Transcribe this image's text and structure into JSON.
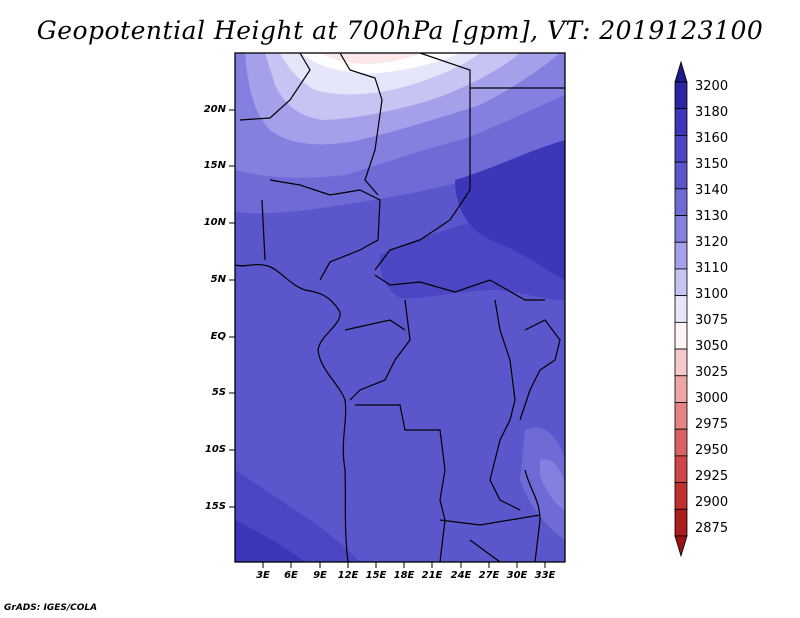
{
  "title": "Geopotential Height at 700hPa [gpm], VT: 2019123100",
  "credit": "GrADS: IGES/COLA",
  "map": {
    "lat_labels": [
      "20N",
      "15N",
      "10N",
      "5N",
      "EQ",
      "5S",
      "10S",
      "15S"
    ],
    "lon_labels": [
      "3E",
      "6E",
      "9E",
      "12E",
      "15E",
      "18E",
      "21E",
      "24E",
      "27E",
      "30E",
      "33E"
    ]
  },
  "colorbar": {
    "labels": [
      "3200",
      "3180",
      "3160",
      "3150",
      "3140",
      "3130",
      "3120",
      "3110",
      "3100",
      "3075",
      "3050",
      "3025",
      "3000",
      "2975",
      "2950",
      "2925",
      "2900",
      "2875"
    ],
    "colors": [
      "#1e1a8c",
      "#2a26a3",
      "#3b37b8",
      "#4a46c4",
      "#5a56cc",
      "#6e6ad6",
      "#8480e0",
      "#a4a1ea",
      "#c6c4f2",
      "#e6e6fa",
      "#fff4f4",
      "#f6c8c8",
      "#eea6a6",
      "#e48484",
      "#da6262",
      "#d04646",
      "#c03030",
      "#ac1e1e",
      "#961414"
    ]
  }
}
